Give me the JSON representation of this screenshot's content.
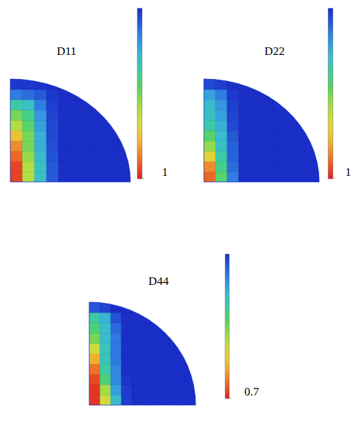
{
  "chart_data": [
    {
      "type": "heatmap",
      "title": "D11",
      "tick_labels": false,
      "cells": [
        [
          0.95,
          0.6,
          0.3,
          0.08,
          0,
          0,
          0,
          0,
          0,
          0
        ],
        [
          0.95,
          0.6,
          0.3,
          0.08,
          0,
          0,
          0,
          0,
          0,
          0
        ],
        [
          0.9,
          0.55,
          0.28,
          0.07,
          0,
          0,
          0,
          0,
          0,
          0
        ],
        [
          0.85,
          0.5,
          0.25,
          0.06,
          0,
          0,
          0,
          0,
          0,
          0
        ],
        [
          0.75,
          0.5,
          0.25,
          0.05,
          0,
          0,
          0,
          0,
          0,
          0
        ],
        [
          0.6,
          0.45,
          0.22,
          0.05,
          0,
          0,
          0,
          0,
          0,
          null
        ],
        [
          0.5,
          0.4,
          0.2,
          0.04,
          0,
          0,
          0,
          0,
          null,
          null
        ],
        [
          0.35,
          0.3,
          0.15,
          0.03,
          0,
          0,
          0,
          0,
          null,
          null
        ],
        [
          0.15,
          0.12,
          0.08,
          0.02,
          0,
          0,
          null,
          null,
          null,
          null
        ],
        [
          0.02,
          0.02,
          0.01,
          0,
          0,
          null,
          null,
          null,
          null,
          null
        ]
      ],
      "colorbar": {
        "range": [
          0,
          1
        ],
        "ticks": [
          1
        ]
      }
    },
    {
      "type": "heatmap",
      "title": "D22",
      "tick_labels": false,
      "cells": [
        [
          0.9,
          0.45,
          0.15,
          0,
          0,
          0,
          0,
          0,
          0,
          0
        ],
        [
          0.85,
          0.4,
          0.12,
          0,
          0,
          0,
          0,
          0,
          0,
          0
        ],
        [
          0.7,
          0.35,
          0.1,
          0,
          0,
          0,
          0,
          0,
          0,
          0
        ],
        [
          0.55,
          0.3,
          0.1,
          0,
          0,
          0,
          0,
          0,
          0,
          0
        ],
        [
          0.45,
          0.28,
          0.08,
          0,
          0,
          0,
          0,
          0,
          0,
          0
        ],
        [
          0.35,
          0.25,
          0.05,
          0,
          0,
          0,
          0,
          0,
          0,
          null
        ],
        [
          0.3,
          0.22,
          0.04,
          0,
          0,
          0,
          0,
          0,
          null,
          null
        ],
        [
          0.28,
          0.2,
          0.03,
          0,
          0,
          0,
          0,
          0,
          null,
          null
        ],
        [
          0.22,
          0.15,
          0.02,
          0,
          0,
          0,
          null,
          null,
          null,
          null
        ],
        [
          0.05,
          0.03,
          0,
          0,
          0,
          null,
          null,
          null,
          null,
          null
        ]
      ],
      "colorbar": {
        "range": [
          0,
          1
        ],
        "ticks": [
          1
        ]
      }
    },
    {
      "type": "heatmap",
      "title": "D44",
      "tick_labels": false,
      "cells": [
        [
          0.68,
          0.45,
          0.2,
          0.02,
          0,
          0,
          0,
          0,
          0,
          0
        ],
        [
          0.68,
          0.4,
          0.15,
          0.02,
          0,
          0,
          0,
          0,
          0,
          0
        ],
        [
          0.66,
          0.3,
          0.12,
          0.01,
          0,
          0,
          0,
          0,
          0,
          0
        ],
        [
          0.62,
          0.25,
          0.12,
          0,
          0,
          0,
          0,
          0,
          0,
          0
        ],
        [
          0.55,
          0.22,
          0.1,
          0,
          0,
          0,
          0,
          0,
          0,
          0
        ],
        [
          0.45,
          0.22,
          0.1,
          0,
          0,
          0,
          0,
          0,
          0,
          null
        ],
        [
          0.35,
          0.2,
          0.1,
          0,
          0,
          0,
          0,
          0,
          null,
          null
        ],
        [
          0.3,
          0.2,
          0.08,
          0,
          0,
          0,
          0,
          0,
          null,
          null
        ],
        [
          0.25,
          0.18,
          0.05,
          0,
          0,
          0,
          null,
          null,
          null,
          null
        ],
        [
          0.05,
          0.03,
          0,
          0,
          0,
          null,
          null,
          null,
          null,
          null
        ]
      ],
      "colorbar": {
        "range": [
          0,
          0.7
        ],
        "ticks": [
          0.7
        ]
      }
    }
  ]
}
